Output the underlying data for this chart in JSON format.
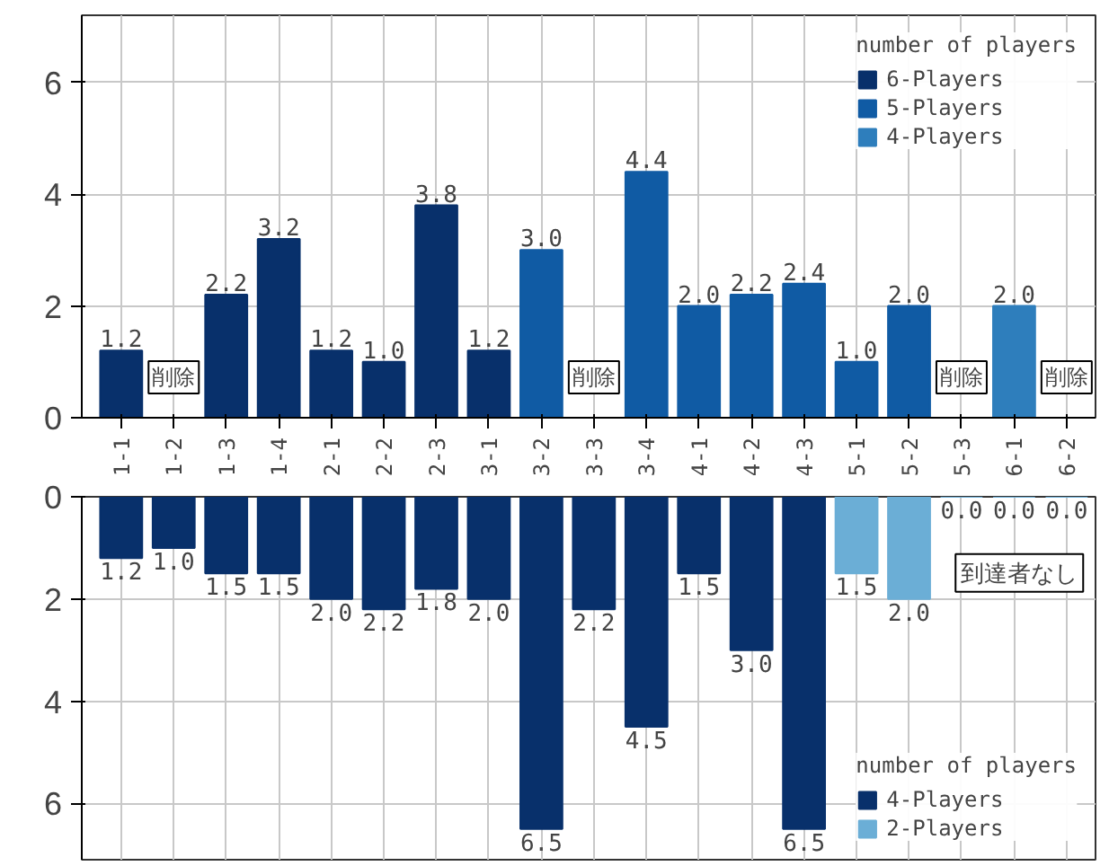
{
  "chart_data": [
    {
      "type": "bar",
      "categories": [
        "1-1",
        "1-2",
        "1-3",
        "1-4",
        "2-1",
        "2-2",
        "2-3",
        "3-1",
        "3-2",
        "3-3",
        "3-4",
        "4-1",
        "4-2",
        "4-3",
        "5-1",
        "5-2",
        "5-3",
        "6-1",
        "6-2"
      ],
      "legend_title": "number of players",
      "ylim": [
        0,
        7.2
      ],
      "yticks": [
        0,
        2,
        4,
        6
      ],
      "grid": true,
      "legend": "top right",
      "series": [
        {
          "name": "6-Players",
          "color": "#08306b",
          "values": [
            1.2,
            null,
            2.2,
            3.2,
            1.2,
            1.0,
            3.8,
            1.2,
            null,
            null,
            null,
            null,
            null,
            null,
            null,
            null,
            null,
            null,
            null
          ],
          "value_labels": [
            "1.2",
            null,
            "2.2",
            "3.2",
            "1.2",
            "1.0",
            "3.8",
            "1.2",
            null,
            null,
            null,
            null,
            null,
            null,
            null,
            null,
            null,
            null,
            null
          ]
        },
        {
          "name": "5-Players",
          "color": "#105ba4",
          "values": [
            null,
            null,
            null,
            null,
            null,
            null,
            null,
            null,
            3.0,
            null,
            4.4,
            2.0,
            2.2,
            2.4,
            1.0,
            2.0,
            null,
            null,
            null
          ],
          "value_labels": [
            null,
            null,
            null,
            null,
            null,
            null,
            null,
            null,
            "3.0",
            null,
            "4.4",
            "2.0",
            "2.2",
            "2.4",
            "1.0",
            "2.0",
            null,
            null,
            null
          ]
        },
        {
          "name": "4-Players",
          "color": "#2e7ebc",
          "values": [
            null,
            null,
            null,
            null,
            null,
            null,
            null,
            null,
            null,
            null,
            null,
            null,
            null,
            null,
            null,
            null,
            null,
            2.0,
            null
          ],
          "value_labels": [
            null,
            null,
            null,
            null,
            null,
            null,
            null,
            null,
            null,
            null,
            null,
            null,
            null,
            null,
            null,
            null,
            null,
            "2.0",
            null
          ]
        }
      ],
      "annotations": [
        {
          "text": "削除",
          "x": "1-2"
        },
        {
          "text": "削除",
          "x": "3-3"
        },
        {
          "text": "削除",
          "x": "5-3"
        },
        {
          "text": "削除",
          "x": "6-2"
        }
      ]
    },
    {
      "type": "bar",
      "categories": [
        null,
        null,
        null,
        null,
        null,
        null,
        null,
        null,
        null,
        null,
        null,
        null,
        null,
        null,
        null,
        null,
        null,
        null,
        null
      ],
      "legend_title": "number of players",
      "ylim": [
        7.1,
        0
      ],
      "yticks": [
        0,
        2,
        4,
        6
      ],
      "grid": true,
      "legend": "bottom right",
      "tick_labels": "y",
      "series": [
        {
          "name": "4-Players",
          "color": "#08306b",
          "values": [
            1.2,
            1.0,
            1.5,
            1.5,
            2.0,
            2.2,
            1.8,
            2.0,
            6.5,
            2.2,
            4.5,
            1.5,
            3.0,
            6.5,
            null,
            null,
            null,
            null,
            null
          ],
          "value_labels": [
            "1.2",
            "1.0",
            "1.5",
            "1.5",
            "2.0",
            "2.2",
            "1.8",
            "2.0",
            "6.5",
            "2.2",
            "4.5",
            "1.5",
            "3.0",
            "6.5",
            null,
            null,
            null,
            null,
            null
          ]
        },
        {
          "name": "2-Players",
          "color": "#6baed6",
          "values": [
            null,
            null,
            null,
            null,
            null,
            null,
            null,
            null,
            null,
            null,
            null,
            null,
            null,
            null,
            1.5,
            2.0,
            0.0,
            0.0,
            0.0
          ],
          "value_labels": [
            null,
            null,
            null,
            null,
            null,
            null,
            null,
            null,
            null,
            null,
            null,
            null,
            null,
            null,
            "1.5",
            "2.0",
            "0.0",
            "0.0",
            "0.0"
          ]
        }
      ],
      "annotations": [
        "到達者なし"
      ]
    }
  ]
}
